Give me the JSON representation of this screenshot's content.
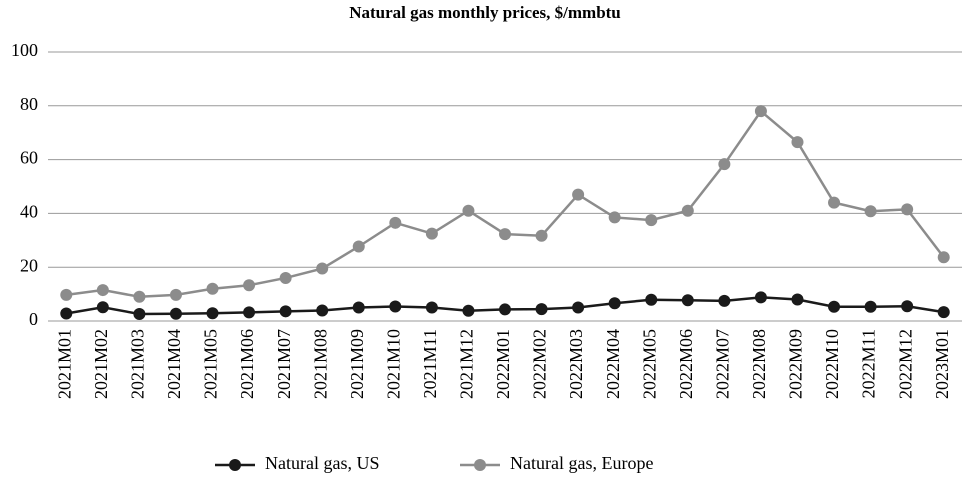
{
  "chart_data": {
    "type": "line",
    "title": "Natural gas monthly prices, $/mmbtu",
    "categories": [
      "2021M01",
      "2021M02",
      "2021M03",
      "2021M04",
      "2021M05",
      "2021M06",
      "2021M07",
      "2021M08",
      "2021M09",
      "2021M10",
      "2021M11",
      "2021M12",
      "2022M01",
      "2022M02",
      "2022M03",
      "2022M04",
      "2022M05",
      "2022M06",
      "2022M07",
      "2022M08",
      "2022M09",
      "2022M10",
      "2022M11",
      "2022M12",
      "2023M01"
    ],
    "series": [
      {
        "name": "Natural gas, US",
        "color": "#1a1a1a",
        "values": [
          2.8,
          5.1,
          2.6,
          2.7,
          2.9,
          3.2,
          3.6,
          3.9,
          5.0,
          5.4,
          5.0,
          3.8,
          4.3,
          4.4,
          5.0,
          6.6,
          7.9,
          7.7,
          7.5,
          8.8,
          8.0,
          5.3,
          5.3,
          5.5,
          3.3
        ]
      },
      {
        "name": "Natural gas, Europe",
        "color": "#8c8c8c",
        "values": [
          9.7,
          11.5,
          9.0,
          9.7,
          12.0,
          13.3,
          16.0,
          19.5,
          27.7,
          36.5,
          32.5,
          41.0,
          32.3,
          31.7,
          47.0,
          38.5,
          37.5,
          41.0,
          58.3,
          78.0,
          66.5,
          44.0,
          40.8,
          41.5,
          23.7
        ]
      }
    ],
    "ylim": [
      0,
      100
    ],
    "yticks": [
      0,
      20,
      40,
      60,
      80,
      100
    ],
    "grid": true,
    "legend": "bottom"
  }
}
